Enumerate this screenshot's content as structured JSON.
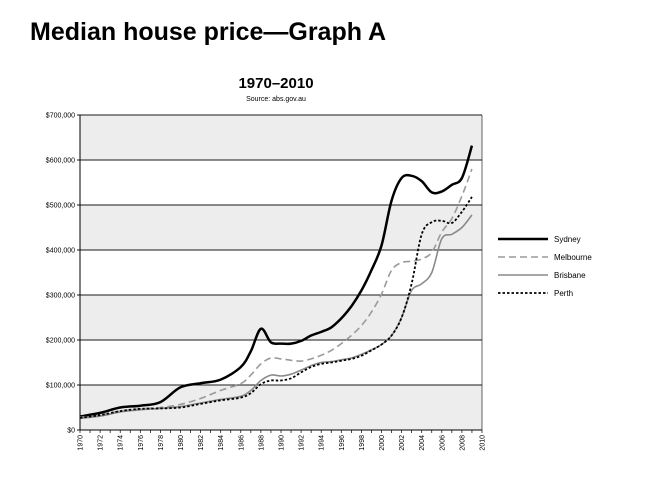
{
  "page": {
    "title": "Median house price—Graph A"
  },
  "chart_data": {
    "type": "line",
    "title": "1970–2010",
    "subtitle": "Source: abs.gov.au",
    "xlabel": "",
    "ylabel": "",
    "xlim": [
      1970,
      2010
    ],
    "ylim": [
      0,
      700000
    ],
    "x_ticks": [
      "1970",
      "1972",
      "1974",
      "1976",
      "1978",
      "1980",
      "1982",
      "1984",
      "1986",
      "1988",
      "1990",
      "1992",
      "1994",
      "1996",
      "1998",
      "2000",
      "2002",
      "2004",
      "2006",
      "2008",
      "2010"
    ],
    "y_ticks": [
      {
        "value": 0,
        "label": "$0"
      },
      {
        "value": 100000,
        "label": "$100,000"
      },
      {
        "value": 200000,
        "label": "$200,000"
      },
      {
        "value": 300000,
        "label": "$300,000"
      },
      {
        "value": 400000,
        "label": "$400,000"
      },
      {
        "value": 500000,
        "label": "$500,000"
      },
      {
        "value": 600000,
        "label": "$600,000"
      },
      {
        "value": 700000,
        "label": "$700,000"
      }
    ],
    "grid": true,
    "legend_position": "right",
    "series": [
      {
        "name": "Sydney",
        "color": "#000000",
        "dash": "",
        "width": 2.5,
        "points": [
          [
            1970,
            30000
          ],
          [
            1972,
            38000
          ],
          [
            1974,
            50000
          ],
          [
            1976,
            54000
          ],
          [
            1978,
            62000
          ],
          [
            1980,
            95000
          ],
          [
            1982,
            104000
          ],
          [
            1984,
            112000
          ],
          [
            1986,
            140000
          ],
          [
            1987,
            175000
          ],
          [
            1988,
            225000
          ],
          [
            1989,
            195000
          ],
          [
            1990,
            192000
          ],
          [
            1991,
            192000
          ],
          [
            1992,
            198000
          ],
          [
            1993,
            210000
          ],
          [
            1994,
            218000
          ],
          [
            1995,
            228000
          ],
          [
            1996,
            248000
          ],
          [
            1997,
            275000
          ],
          [
            1998,
            310000
          ],
          [
            1999,
            355000
          ],
          [
            2000,
            410000
          ],
          [
            2001,
            510000
          ],
          [
            2002,
            560000
          ],
          [
            2003,
            565000
          ],
          [
            2004,
            553000
          ],
          [
            2005,
            528000
          ],
          [
            2006,
            530000
          ],
          [
            2007,
            545000
          ],
          [
            2008,
            560000
          ],
          [
            2009,
            632000
          ]
        ]
      },
      {
        "name": "Melbourne",
        "color": "#9a9a9a",
        "dash": "7,4",
        "width": 1.6,
        "points": [
          [
            1970,
            28000
          ],
          [
            1972,
            33000
          ],
          [
            1974,
            42000
          ],
          [
            1976,
            47000
          ],
          [
            1978,
            50000
          ],
          [
            1980,
            57000
          ],
          [
            1982,
            70000
          ],
          [
            1984,
            88000
          ],
          [
            1986,
            103000
          ],
          [
            1987,
            122000
          ],
          [
            1988,
            147000
          ],
          [
            1989,
            160000
          ],
          [
            1990,
            158000
          ],
          [
            1991,
            155000
          ],
          [
            1992,
            153000
          ],
          [
            1993,
            158000
          ],
          [
            1994,
            166000
          ],
          [
            1995,
            177000
          ],
          [
            1996,
            192000
          ],
          [
            1997,
            210000
          ],
          [
            1998,
            232000
          ],
          [
            1999,
            262000
          ],
          [
            2000,
            302000
          ],
          [
            2001,
            355000
          ],
          [
            2002,
            372000
          ],
          [
            2003,
            375000
          ],
          [
            2004,
            380000
          ],
          [
            2005,
            395000
          ],
          [
            2006,
            440000
          ],
          [
            2007,
            470000
          ],
          [
            2008,
            520000
          ],
          [
            2009,
            580000
          ]
        ]
      },
      {
        "name": "Brisbane",
        "color": "#8a8a8a",
        "dash": "",
        "width": 1.6,
        "points": [
          [
            1970,
            26000
          ],
          [
            1972,
            31000
          ],
          [
            1974,
            40000
          ],
          [
            1976,
            45000
          ],
          [
            1978,
            48000
          ],
          [
            1980,
            52000
          ],
          [
            1982,
            60000
          ],
          [
            1984,
            68000
          ],
          [
            1986,
            75000
          ],
          [
            1987,
            88000
          ],
          [
            1988,
            110000
          ],
          [
            1989,
            122000
          ],
          [
            1990,
            120000
          ],
          [
            1991,
            124000
          ],
          [
            1992,
            133000
          ],
          [
            1993,
            143000
          ],
          [
            1994,
            150000
          ],
          [
            1995,
            152000
          ],
          [
            1996,
            156000
          ],
          [
            1997,
            160000
          ],
          [
            1998,
            168000
          ],
          [
            1999,
            178000
          ],
          [
            2000,
            190000
          ],
          [
            2001,
            210000
          ],
          [
            2002,
            250000
          ],
          [
            2003,
            310000
          ],
          [
            2004,
            325000
          ],
          [
            2005,
            350000
          ],
          [
            2006,
            425000
          ],
          [
            2007,
            435000
          ],
          [
            2008,
            450000
          ],
          [
            2009,
            478000
          ]
        ]
      },
      {
        "name": "Perth",
        "color": "#000000",
        "dash": "2.5,2",
        "width": 1.8,
        "points": [
          [
            1970,
            27000
          ],
          [
            1972,
            33000
          ],
          [
            1974,
            42000
          ],
          [
            1976,
            47000
          ],
          [
            1978,
            48000
          ],
          [
            1980,
            50000
          ],
          [
            1982,
            58000
          ],
          [
            1984,
            66000
          ],
          [
            1986,
            72000
          ],
          [
            1987,
            82000
          ],
          [
            1988,
            102000
          ],
          [
            1989,
            110000
          ],
          [
            1990,
            110000
          ],
          [
            1991,
            115000
          ],
          [
            1992,
            128000
          ],
          [
            1993,
            140000
          ],
          [
            1994,
            147000
          ],
          [
            1995,
            150000
          ],
          [
            1996,
            154000
          ],
          [
            1997,
            158000
          ],
          [
            1998,
            165000
          ],
          [
            1999,
            177000
          ],
          [
            2000,
            190000
          ],
          [
            2001,
            210000
          ],
          [
            2002,
            250000
          ],
          [
            2003,
            325000
          ],
          [
            2004,
            435000
          ],
          [
            2005,
            462000
          ],
          [
            2006,
            465000
          ],
          [
            2007,
            460000
          ],
          [
            2008,
            485000
          ],
          [
            2009,
            518000
          ]
        ]
      }
    ]
  }
}
